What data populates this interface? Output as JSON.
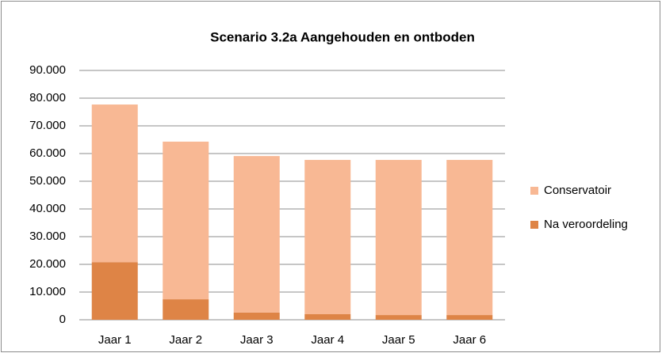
{
  "chart_data": {
    "type": "stacked-bar",
    "title": "Scenario 3.2a  Aangehouden en ontboden",
    "categories": [
      "Jaar 1",
      "Jaar 2",
      "Jaar 3",
      "Jaar 4",
      "Jaar 5",
      "Jaar 6"
    ],
    "series": [
      {
        "name": "Na veroordeling",
        "color": "#de8446",
        "values": [
          20800,
          7400,
          2600,
          2000,
          1700,
          1700
        ]
      },
      {
        "name": "Conservatoir",
        "color": "#f8b894",
        "values": [
          56900,
          56900,
          56500,
          55700,
          56000,
          56000
        ]
      }
    ],
    "ylim": [
      0,
      90000
    ],
    "yticks": [
      0,
      {
        "value": 10000,
        "label": "10.000"
      },
      {
        "value": 20000,
        "label": "20.000"
      },
      {
        "value": 30000,
        "label": "30.000"
      },
      {
        "value": 40000,
        "label": "40.000"
      },
      {
        "value": 50000,
        "label": "50.000"
      },
      {
        "value": 60000,
        "label": "60.000"
      },
      {
        "value": 70000,
        "label": "70.000"
      },
      {
        "value": 80000,
        "label": "80.000"
      },
      {
        "value": 90000,
        "label": "90.000"
      }
    ],
    "grid": true,
    "legend": "right"
  }
}
